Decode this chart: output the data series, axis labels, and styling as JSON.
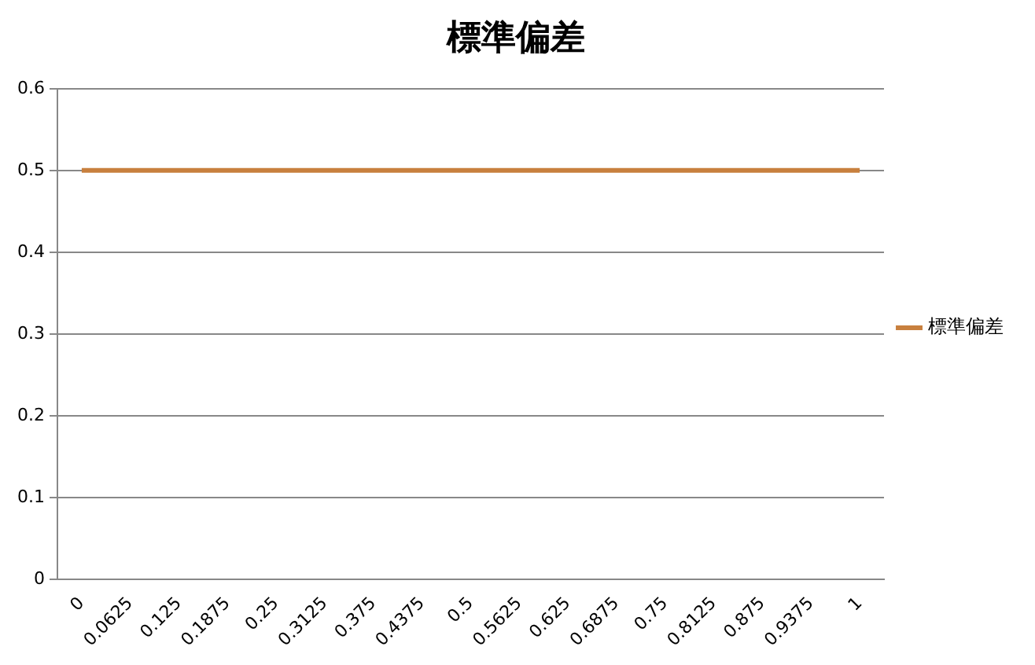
{
  "chart_data": {
    "type": "line",
    "title": "標準偏差",
    "categories": [
      "0",
      "0.0625",
      "0.125",
      "0.1875",
      "0.25",
      "0.3125",
      "0.375",
      "0.4375",
      "0.5",
      "0.5625",
      "0.625",
      "0.6875",
      "0.75",
      "0.8125",
      "0.875",
      "0.9375",
      "1"
    ],
    "series": [
      {
        "name": "標準偏差",
        "color": "#c8803e",
        "values": [
          0.5,
          0.5,
          0.5,
          0.5,
          0.5,
          0.5,
          0.5,
          0.5,
          0.5,
          0.5,
          0.5,
          0.5,
          0.5,
          0.5,
          0.5,
          0.5,
          0.5
        ]
      }
    ],
    "ylim": [
      0,
      0.6
    ],
    "yticks": [
      0,
      0.1,
      0.2,
      0.3,
      0.4,
      0.5,
      0.6
    ],
    "grid": "y",
    "legend": "right",
    "marker": "none",
    "line_style": "solid"
  }
}
